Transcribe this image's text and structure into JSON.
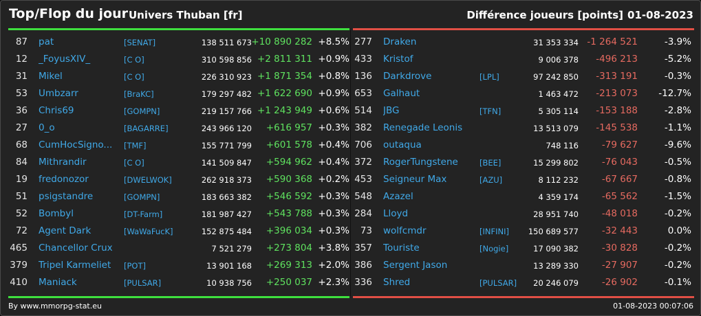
{
  "header": {
    "title": "Top/Flop du jour",
    "server": "Univers Thuban [fr]",
    "metric": "Différence joueurs [points]",
    "date": "01-08-2023"
  },
  "colors": {
    "background": "#232323",
    "top_accent": "#3ee03e",
    "flop_accent": "#e14f45",
    "name": "#40a9e8"
  },
  "top": [
    {
      "rank": "87",
      "name": "pat",
      "guild": "[SENAT]",
      "score": "138 511 673",
      "diff": "+10 890 282",
      "pct": "+8.5%"
    },
    {
      "rank": "12",
      "name": "_FoyusXIV_",
      "guild": "[C O]",
      "score": "310 598 856",
      "diff": "+2 811 311",
      "pct": "+0.9%"
    },
    {
      "rank": "31",
      "name": "Mikel",
      "guild": "[C O]",
      "score": "226 310 923",
      "diff": "+1 871 354",
      "pct": "+0.8%"
    },
    {
      "rank": "53",
      "name": "Umbzarr",
      "guild": "[BraKC]",
      "score": "179 297 482",
      "diff": "+1 622 690",
      "pct": "+0.9%"
    },
    {
      "rank": "36",
      "name": "Chris69",
      "guild": "[GOMPN]",
      "score": "219 157 766",
      "diff": "+1 243 949",
      "pct": "+0.6%"
    },
    {
      "rank": "27",
      "name": "0_o",
      "guild": "[BAGARRE]",
      "score": "243 966 120",
      "diff": "+616 957",
      "pct": "+0.3%"
    },
    {
      "rank": "68",
      "name": "CumHocSigno...",
      "guild": "[TMF]",
      "score": "155 771 799",
      "diff": "+601 578",
      "pct": "+0.4%"
    },
    {
      "rank": "84",
      "name": "Mithrandir",
      "guild": "[C O]",
      "score": "141 509 847",
      "diff": "+594 962",
      "pct": "+0.4%"
    },
    {
      "rank": "19",
      "name": "fredonozor",
      "guild": "[DWELWOK]",
      "score": "262 918 373",
      "diff": "+590 368",
      "pct": "+0.2%"
    },
    {
      "rank": "51",
      "name": "psigstandre",
      "guild": "[GOMPN]",
      "score": "183 663 382",
      "diff": "+546 592",
      "pct": "+0.3%"
    },
    {
      "rank": "52",
      "name": "Bombyl",
      "guild": "[DT-Farm]",
      "score": "181 987 427",
      "diff": "+543 788",
      "pct": "+0.3%"
    },
    {
      "rank": "72",
      "name": "Agent Dark",
      "guild": "[WaWaFucK]",
      "score": "152 875 484",
      "diff": "+396 034",
      "pct": "+0.3%"
    },
    {
      "rank": "465",
      "name": "Chancellor Crux",
      "guild": "",
      "score": "7 521 279",
      "diff": "+273 804",
      "pct": "+3.8%"
    },
    {
      "rank": "379",
      "name": "Tripel Karmeliet",
      "guild": "[POT]",
      "score": "13 901 168",
      "diff": "+269 313",
      "pct": "+2.0%"
    },
    {
      "rank": "410",
      "name": "Maniack",
      "guild": "[PULSAR]",
      "score": "10 938 756",
      "diff": "+250 037",
      "pct": "+2.3%"
    }
  ],
  "flop": [
    {
      "rank": "277",
      "name": "Draken",
      "guild": "",
      "score": "31 353 334",
      "diff": "-1 264 521",
      "pct": "-3.9%"
    },
    {
      "rank": "433",
      "name": "Kristof",
      "guild": "",
      "score": "9 006 378",
      "diff": "-496 213",
      "pct": "-5.2%"
    },
    {
      "rank": "136",
      "name": "Darkdrove",
      "guild": "[LPL]",
      "score": "97 242 850",
      "diff": "-313 191",
      "pct": "-0.3%"
    },
    {
      "rank": "653",
      "name": "Galhaut",
      "guild": "",
      "score": "1 463 472",
      "diff": "-213 073",
      "pct": "-12.7%"
    },
    {
      "rank": "514",
      "name": "JBG",
      "guild": "[TFN]",
      "score": "5 305 114",
      "diff": "-153 188",
      "pct": "-2.8%"
    },
    {
      "rank": "382",
      "name": "Renegade Leonis",
      "guild": "",
      "score": "13 513 079",
      "diff": "-145 538",
      "pct": "-1.1%"
    },
    {
      "rank": "706",
      "name": "outaqua",
      "guild": "",
      "score": "748 116",
      "diff": "-79 627",
      "pct": "-9.6%"
    },
    {
      "rank": "372",
      "name": "RogerTungstene",
      "guild": "[BEE]",
      "score": "15 299 802",
      "diff": "-76 043",
      "pct": "-0.5%"
    },
    {
      "rank": "453",
      "name": "Seigneur Max",
      "guild": "[AZU]",
      "score": "8 112 232",
      "diff": "-67 667",
      "pct": "-0.8%"
    },
    {
      "rank": "548",
      "name": "Azazel",
      "guild": "",
      "score": "4 359 174",
      "diff": "-65 562",
      "pct": "-1.5%"
    },
    {
      "rank": "284",
      "name": "Lloyd",
      "guild": "",
      "score": "28 951 740",
      "diff": "-48 018",
      "pct": "-0.2%"
    },
    {
      "rank": "73",
      "name": "wolfcmdr",
      "guild": "[INFINI]",
      "score": "150 689 577",
      "diff": "-32 443",
      "pct": "0.0%"
    },
    {
      "rank": "357",
      "name": "Touriste",
      "guild": "[Nogie]",
      "score": "17 090 382",
      "diff": "-30 828",
      "pct": "-0.2%"
    },
    {
      "rank": "386",
      "name": "Sergent Jason",
      "guild": "",
      "score": "13 289 330",
      "diff": "-27 907",
      "pct": "-0.2%"
    },
    {
      "rank": "336",
      "name": "Shred",
      "guild": "[PULSAR]",
      "score": "20 246 079",
      "diff": "-26 902",
      "pct": "-0.1%"
    }
  ],
  "footer": {
    "credit": "By www.mmorpg-stat.eu",
    "timestamp": "01-08-2023 00:07:06"
  }
}
